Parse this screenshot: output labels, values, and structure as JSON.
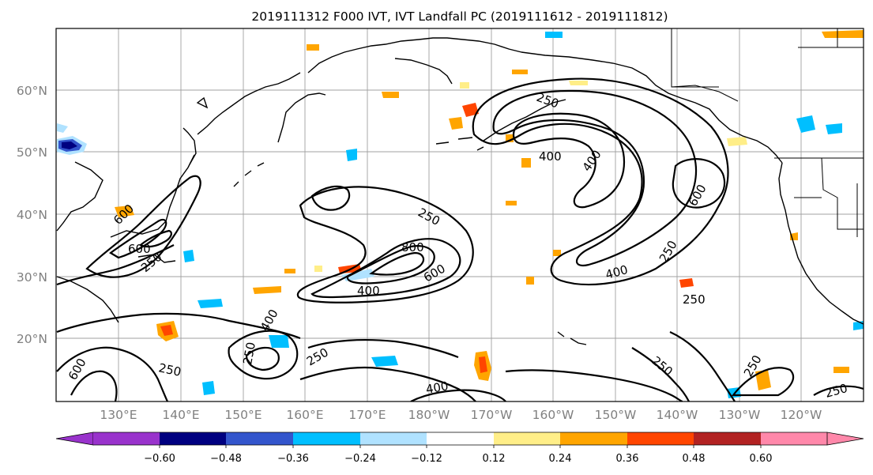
{
  "title": "2019111312 F000 IVT, IVT Landfall PC (2019111612 - 2019111812)",
  "lat_labels": [
    "60°N",
    "50°N",
    "40°N",
    "30°N",
    "20°N"
  ],
  "lon_labels": [
    "130°E",
    "140°E",
    "150°E",
    "160°E",
    "170°E",
    "180°W",
    "170°W",
    "160°W",
    "150°W",
    "140°W",
    "130°W",
    "120°W"
  ],
  "contour_labels": [
    "250",
    "400",
    "600",
    "800",
    "250",
    "400",
    "600",
    "400",
    "400",
    "250",
    "250",
    "400",
    "600",
    "250",
    "600",
    "250",
    "250",
    "250",
    "400",
    "250",
    "250",
    "250",
    "600"
  ],
  "colorbar": {
    "ticks": [
      "−0.60",
      "−0.48",
      "−0.36",
      "−0.24",
      "−0.12",
      "0.12",
      "0.24",
      "0.36",
      "0.48",
      "0.60"
    ],
    "colors": [
      "#9933cc",
      "#000080",
      "#3355cc",
      "#00bfff",
      "#b0e2ff",
      "#ffffff",
      "#ffee88",
      "#ffa500",
      "#ff4500",
      "#b22222",
      "#ff88aa",
      "#ff88aa"
    ]
  },
  "colors": {
    "coast": "#000000",
    "grid": "#a0a0a0",
    "labels": "#808080"
  }
}
